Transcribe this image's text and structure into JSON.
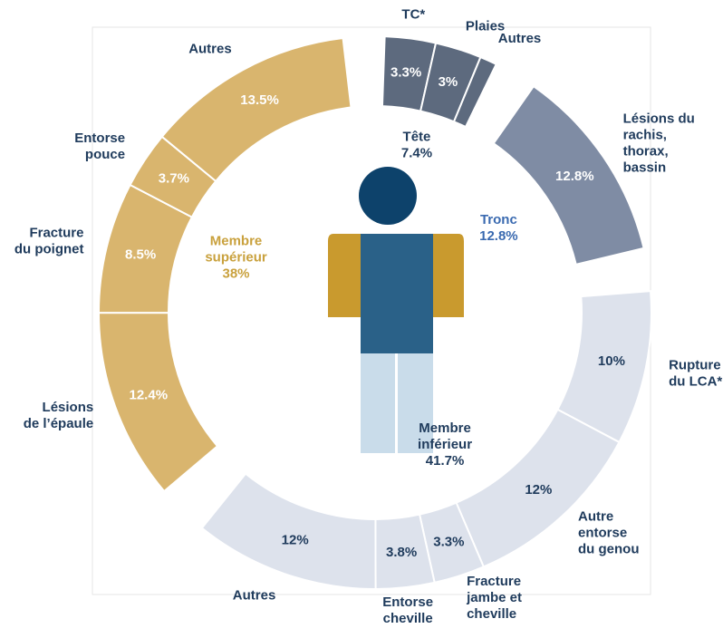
{
  "chart_data": {
    "type": "donut",
    "groups": [
      {
        "name": [
          "Tête"
        ],
        "value": 7.4,
        "value_label": "7.4%",
        "color": "#5d6a7e",
        "label_color": "#1f3b5c",
        "text_color": "#ffffff",
        "segments": [
          {
            "name": [
              "TC*"
            ],
            "value": 3.3,
            "value_label": "3.3%"
          },
          {
            "name": [
              "Plaies"
            ],
            "value": 3,
            "value_label": "3%"
          },
          {
            "name": [
              "Autres"
            ],
            "value": 1.1
          }
        ]
      },
      {
        "name": [
          "Tronc"
        ],
        "value": 12.8,
        "value_label": "12.8%",
        "color": "#7f8ca4",
        "label_color": "#3a6ab0",
        "text_color": "#ffffff",
        "segments": [
          {
            "name": [
              "Lésions du",
              "rachis,",
              "thorax,",
              "bassin"
            ],
            "value": 12.8,
            "value_label": "12.8%"
          }
        ]
      },
      {
        "name": [
          "Membre",
          "inférieur"
        ],
        "value": 41.7,
        "value_label": "41.7%",
        "color": "#dde2ec",
        "label_color": "#1f3b5c",
        "text_color": "#1f3b5c",
        "segments": [
          {
            "name": [
              "Rupture",
              "du LCA*"
            ],
            "value": 10,
            "value_label": "10%"
          },
          {
            "name": [
              "Autre",
              "entorse",
              "du genou"
            ],
            "value": 12,
            "value_label": "12%"
          },
          {
            "name": [
              "Fracture",
              "jambe et",
              "cheville"
            ],
            "value": 3.3,
            "value_label": "3.3%"
          },
          {
            "name": [
              "Entorse",
              "cheville"
            ],
            "value": 3.8,
            "value_label": "3.8%"
          },
          {
            "name": [
              "Autres"
            ],
            "value": 12,
            "value_label": "12%"
          }
        ]
      },
      {
        "name": [
          "Membre",
          "supérieur"
        ],
        "value": 38,
        "value_label": "38%",
        "color": "#d9b56e",
        "label_color": "#c9a13d",
        "text_color": "#ffffff",
        "segments": [
          {
            "name": [
              "Lésions",
              "de l’épaule"
            ],
            "value": 12.4,
            "value_label": "12.4%"
          },
          {
            "name": [
              "Fracture",
              "du poignet"
            ],
            "value": 8.5,
            "value_label": "8.5%"
          },
          {
            "name": [
              "Entorse",
              "pouce"
            ],
            "value": 3.7,
            "value_label": "3.7%"
          },
          {
            "name": [
              "Autres"
            ],
            "value": 13.5,
            "value_label": "13.5%"
          }
        ]
      }
    ]
  }
}
